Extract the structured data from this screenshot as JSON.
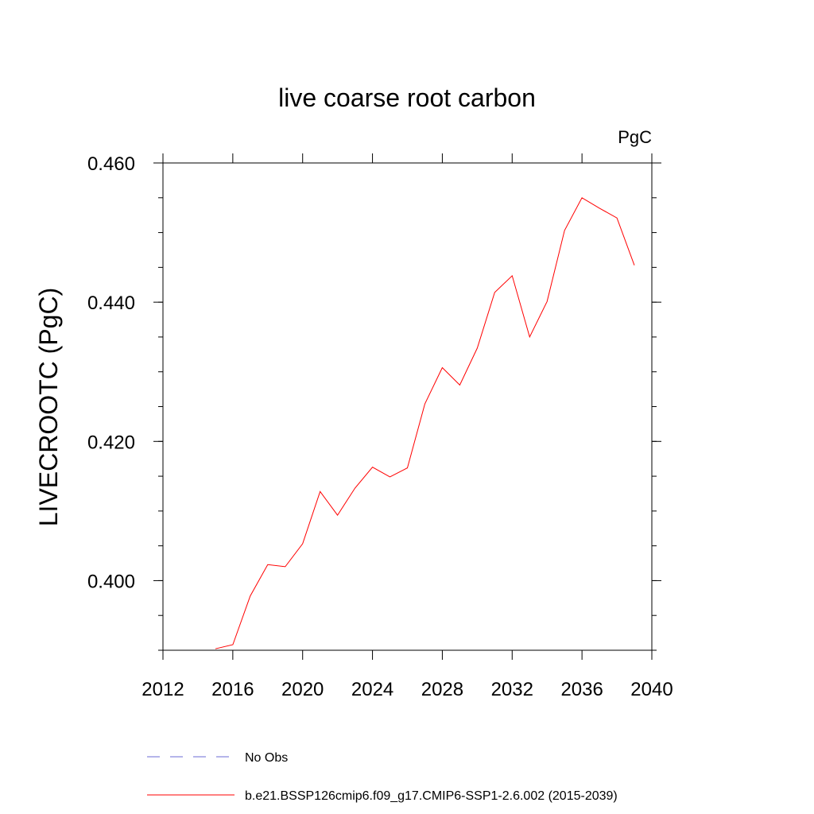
{
  "chart_data": {
    "type": "line",
    "title": "live coarse root carbon",
    "units_label": "PgC",
    "ylabel": "LIVECROOTC  (PgC)",
    "xlabel": "",
    "xlim": [
      2012,
      2040
    ],
    "ylim": [
      0.39,
      0.46
    ],
    "x_ticks": [
      2012,
      2016,
      2020,
      2024,
      2028,
      2032,
      2036,
      2040
    ],
    "x_tick_labels": [
      "2012",
      "2016",
      "2020",
      "2024",
      "2028",
      "2032",
      "2036",
      "2040"
    ],
    "y_ticks": [
      0.4,
      0.42,
      0.44,
      0.46
    ],
    "y_tick_labels": [
      "0.400",
      "0.420",
      "0.440",
      "0.460"
    ],
    "grid": false,
    "legend_position": "bottom",
    "series": [
      {
        "name": "b.e21.BSSP126cmip6.f09_g17.CMIP6-SSP1-2.6.002 (2015-2039)",
        "color": "#ff0000",
        "style": "solid",
        "x": [
          2015,
          2016,
          2017,
          2018,
          2019,
          2020,
          2021,
          2022,
          2023,
          2024,
          2025,
          2026,
          2027,
          2028,
          2029,
          2030,
          2031,
          2032,
          2033,
          2034,
          2035,
          2036,
          2037,
          2038,
          2039
        ],
        "y": [
          0.3902,
          0.3908,
          0.3978,
          0.4023,
          0.402,
          0.4053,
          0.4128,
          0.4094,
          0.4133,
          0.4163,
          0.4149,
          0.4162,
          0.4254,
          0.4306,
          0.4281,
          0.4334,
          0.4414,
          0.4438,
          0.435,
          0.4401,
          0.4503,
          0.455,
          0.4535,
          0.4521,
          0.4453
        ]
      }
    ],
    "legend": [
      {
        "label": "No Obs",
        "color": "#6b6bd6",
        "style": "dashed"
      },
      {
        "label": "b.e21.BSSP126cmip6.f09_g17.CMIP6-SSP1-2.6.002 (2015-2039)",
        "color": "#ff0000",
        "style": "solid"
      }
    ]
  }
}
